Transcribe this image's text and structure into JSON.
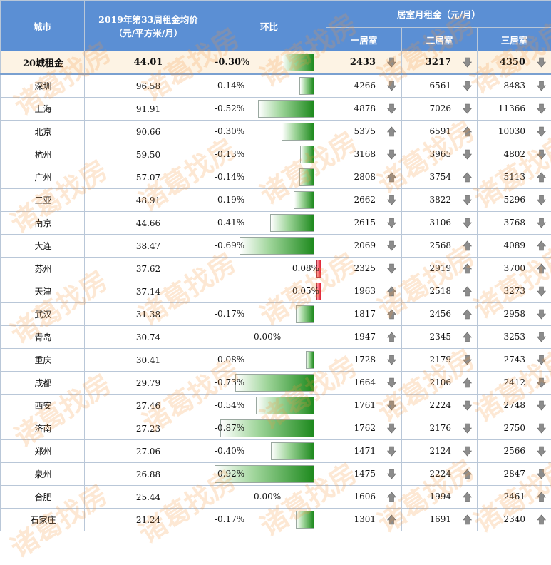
{
  "header": {
    "city": "城市",
    "price_line1": "2019年第33周租金均价",
    "price_line2": "（元/平方米/月）",
    "mom": "环比",
    "rent_group": "居室月租金（元/月）",
    "r1": "一居室",
    "r2": "二居室",
    "r3": "三居室"
  },
  "total": {
    "city": "20城租金",
    "price": "44.01",
    "mom": "-0.30%",
    "mom_value": -0.3,
    "r1": "2433",
    "r1_dir": "down",
    "r2": "3217",
    "r2_dir": "down",
    "r3": "4350",
    "r3_dir": "down"
  },
  "rows": [
    {
      "city": "深圳",
      "price": "96.58",
      "mom": "-0.14%",
      "mom_value": -0.14,
      "r1": "4266",
      "r1_dir": "down",
      "r2": "6561",
      "r2_dir": "down",
      "r3": "8483",
      "r3_dir": "down"
    },
    {
      "city": "上海",
      "price": "91.91",
      "mom": "-0.52%",
      "mom_value": -0.52,
      "r1": "4878",
      "r1_dir": "down",
      "r2": "7026",
      "r2_dir": "down",
      "r3": "11366",
      "r3_dir": "down"
    },
    {
      "city": "北京",
      "price": "90.66",
      "mom": "-0.30%",
      "mom_value": -0.3,
      "r1": "5375",
      "r1_dir": "up",
      "r2": "6591",
      "r2_dir": "up",
      "r3": "10030",
      "r3_dir": "down"
    },
    {
      "city": "杭州",
      "price": "59.50",
      "mom": "-0.13%",
      "mom_value": -0.13,
      "r1": "3168",
      "r1_dir": "down",
      "r2": "3965",
      "r2_dir": "down",
      "r3": "4802",
      "r3_dir": "down"
    },
    {
      "city": "广州",
      "price": "57.07",
      "mom": "-0.14%",
      "mom_value": -0.14,
      "r1": "2808",
      "r1_dir": "up",
      "r2": "3754",
      "r2_dir": "up",
      "r3": "5113",
      "r3_dir": "up"
    },
    {
      "city": "三亚",
      "price": "48.91",
      "mom": "-0.19%",
      "mom_value": -0.19,
      "r1": "2662",
      "r1_dir": "down",
      "r2": "3822",
      "r2_dir": "down",
      "r3": "5296",
      "r3_dir": "down"
    },
    {
      "city": "南京",
      "price": "44.66",
      "mom": "-0.41%",
      "mom_value": -0.41,
      "r1": "2615",
      "r1_dir": "down",
      "r2": "3106",
      "r2_dir": "down",
      "r3": "3768",
      "r3_dir": "down"
    },
    {
      "city": "大连",
      "price": "38.47",
      "mom": "-0.69%",
      "mom_value": -0.69,
      "r1": "2069",
      "r1_dir": "down",
      "r2": "2568",
      "r2_dir": "up",
      "r3": "4089",
      "r3_dir": "up"
    },
    {
      "city": "苏州",
      "price": "37.62",
      "mom": "0.08%",
      "mom_value": 0.08,
      "r1": "2325",
      "r1_dir": "down",
      "r2": "2919",
      "r2_dir": "up",
      "r3": "3700",
      "r3_dir": "up"
    },
    {
      "city": "天津",
      "price": "37.14",
      "mom": "0.05%",
      "mom_value": 0.05,
      "r1": "1963",
      "r1_dir": "up",
      "r2": "2518",
      "r2_dir": "up",
      "r3": "3273",
      "r3_dir": "down"
    },
    {
      "city": "武汉",
      "price": "31.38",
      "mom": "-0.17%",
      "mom_value": -0.17,
      "r1": "1817",
      "r1_dir": "up",
      "r2": "2456",
      "r2_dir": "up",
      "r3": "2958",
      "r3_dir": "down"
    },
    {
      "city": "青岛",
      "price": "30.74",
      "mom": "0.00%",
      "mom_value": 0,
      "r1": "1947",
      "r1_dir": "up",
      "r2": "2345",
      "r2_dir": "up",
      "r3": "3253",
      "r3_dir": "down"
    },
    {
      "city": "重庆",
      "price": "30.41",
      "mom": "-0.08%",
      "mom_value": -0.08,
      "r1": "1728",
      "r1_dir": "down",
      "r2": "2179",
      "r2_dir": "down",
      "r3": "2743",
      "r3_dir": "down"
    },
    {
      "city": "成都",
      "price": "29.79",
      "mom": "-0.73%",
      "mom_value": -0.73,
      "r1": "1664",
      "r1_dir": "down",
      "r2": "2106",
      "r2_dir": "up",
      "r3": "2412",
      "r3_dir": "down"
    },
    {
      "city": "西安",
      "price": "27.46",
      "mom": "-0.54%",
      "mom_value": -0.54,
      "r1": "1761",
      "r1_dir": "down",
      "r2": "2224",
      "r2_dir": "down",
      "r3": "2748",
      "r3_dir": "down"
    },
    {
      "city": "济南",
      "price": "27.23",
      "mom": "-0.87%",
      "mom_value": -0.87,
      "r1": "1762",
      "r1_dir": "down",
      "r2": "2176",
      "r2_dir": "down",
      "r3": "2750",
      "r3_dir": "down"
    },
    {
      "city": "郑州",
      "price": "27.06",
      "mom": "-0.40%",
      "mom_value": -0.4,
      "r1": "1471",
      "r1_dir": "down",
      "r2": "2124",
      "r2_dir": "down",
      "r3": "2566",
      "r3_dir": "down"
    },
    {
      "city": "泉州",
      "price": "26.88",
      "mom": "-0.92%",
      "mom_value": -0.92,
      "r1": "1475",
      "r1_dir": "down",
      "r2": "2224",
      "r2_dir": "up",
      "r3": "2847",
      "r3_dir": "down"
    },
    {
      "city": "合肥",
      "price": "25.44",
      "mom": "0.00%",
      "mom_value": 0,
      "r1": "1606",
      "r1_dir": "up",
      "r2": "1994",
      "r2_dir": "up",
      "r3": "2461",
      "r3_dir": "up"
    },
    {
      "city": "石家庄",
      "price": "21.24",
      "mom": "-0.17%",
      "mom_value": -0.17,
      "r1": "1301",
      "r1_dir": "up",
      "r2": "1691",
      "r2_dir": "up",
      "r3": "2340",
      "r3_dir": "up"
    }
  ],
  "watermark": "诸葛找房",
  "colors": {
    "header_bg": "#5b8fd4",
    "neg_bar": "#1e8a1e",
    "pos_bar": "#e02030",
    "arrow": "#8c8c8c",
    "watermark": "#f4963c"
  }
}
